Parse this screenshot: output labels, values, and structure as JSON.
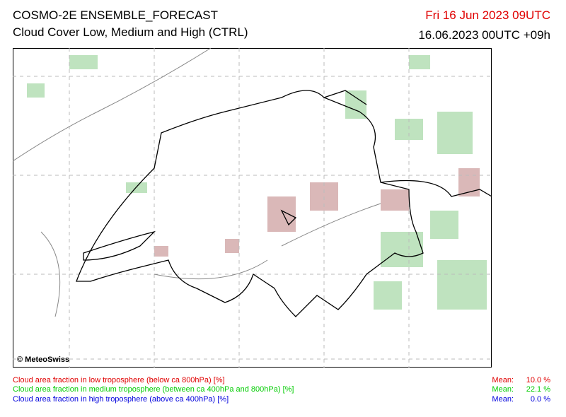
{
  "header": {
    "title": "COSMO-2E ENSEMBLE_FORECAST",
    "subtitle": "Cloud Cover Low, Medium and High (CTRL)",
    "valid_time": "Fri 16 Jun 2023 09UTC",
    "run_time": "16.06.2023 00UTC +09h"
  },
  "map": {
    "copyright": "© MeteoSwiss"
  },
  "legend": {
    "rows": [
      {
        "label": "Cloud area fraction in low troposphere (below ca 800hPa) [%]",
        "mean_label": "Mean:",
        "mean_value": "10.0 %"
      },
      {
        "label": "Cloud area fraction in medium troposphere (between ca 400hPa and 800hPa) [%]",
        "mean_label": "Mean:",
        "mean_value": "22.1 %"
      },
      {
        "label": "Cloud area fraction in high troposphere (above ca 400hPa) [%]",
        "mean_label": "Mean:",
        "mean_value": "0.0 %"
      }
    ]
  }
}
